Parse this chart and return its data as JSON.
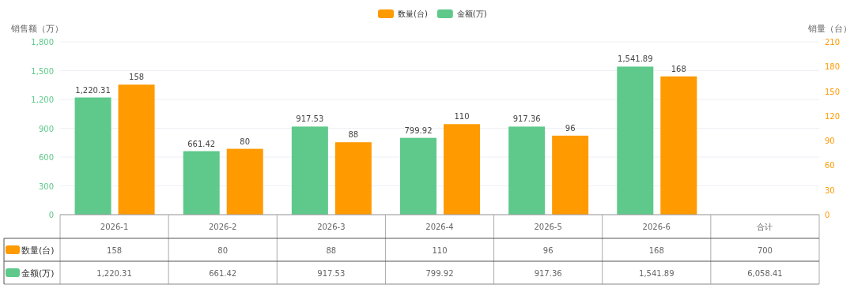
{
  "chart_data": {
    "type": "bar",
    "categories": [
      "2026-1",
      "2026-2",
      "2026-3",
      "2026-4",
      "2026-5",
      "2026-6",
      "合计"
    ],
    "ylabel": "销售额（万）",
    "y2label": "销量（台）",
    "ylim": [
      0,
      1800
    ],
    "yticks": [
      0,
      {
        "value": 300,
        "label": "300"
      },
      {
        "value": 600,
        "label": "600"
      },
      {
        "value": 900,
        "label": "900"
      },
      {
        "value": 1200,
        "label": "1,200"
      },
      {
        "value": 1500,
        "label": "1,500"
      },
      {
        "value": 1800,
        "label": "1,800"
      }
    ],
    "y2lim": [
      0,
      210
    ],
    "y2ticks": [
      0,
      30,
      60,
      90,
      120,
      150,
      180,
      210
    ],
    "grid": "y",
    "legend": "top",
    "data_labels": true,
    "series": [
      {
        "name": "金额(万)",
        "color": "#5ec98a",
        "values": [
          1220.31,
          661.42,
          917.53,
          799.92,
          917.36,
          1541.89,
          null
        ],
        "value_labels": [
          "1,220.31",
          "661.42",
          "917.53",
          "799.92",
          "917.36",
          "1,541.89",
          "6,058.41"
        ]
      },
      {
        "name": "数量(台)",
        "color": "#ff9a00",
        "axis": "y2",
        "values": [
          158,
          80,
          88,
          110,
          96,
          168,
          null
        ],
        "value_labels": [
          "158",
          "80",
          "88",
          "110",
          "96",
          "168",
          "700"
        ]
      }
    ]
  }
}
